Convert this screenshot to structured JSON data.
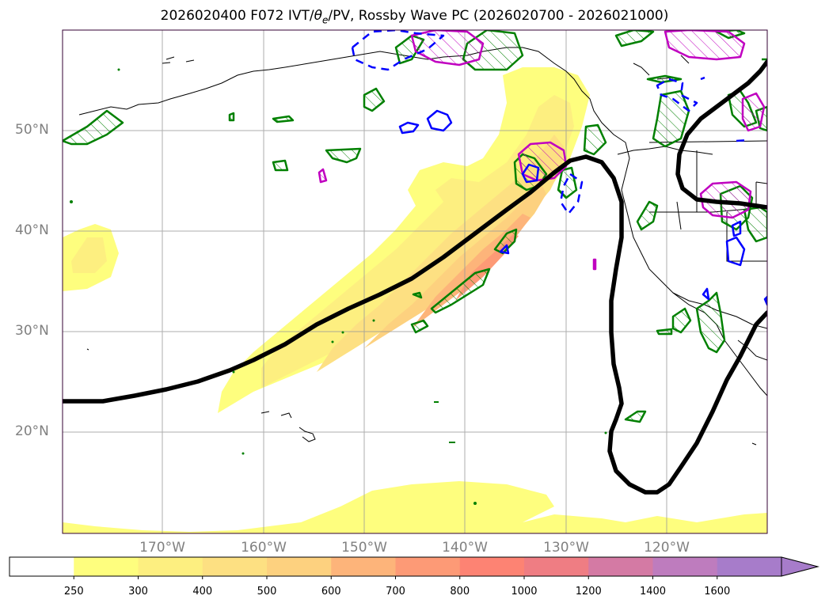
{
  "title_parts": {
    "prefix": "2026020400 F072 IVT/",
    "theta": "θ",
    "theta_sub": "e",
    "suffix": "/PV, Rossby Wave PC (2026020700 - 2026021000)"
  },
  "map": {
    "lat_labels": [
      "50°N",
      "40°N",
      "30°N",
      "20°N"
    ],
    "lon_labels": [
      "170°W",
      "160°W",
      "150°W",
      "140°W",
      "130°W",
      "120°W"
    ]
  },
  "colorbar": {
    "labels": [
      "250",
      "300",
      "400",
      "500",
      "600",
      "700",
      "800",
      "1000",
      "1200",
      "1400",
      "1600"
    ],
    "colors": [
      "#ffffff",
      "#fefe7e",
      "#fdef80",
      "#fde082",
      "#fdd17f",
      "#fdb47a",
      "#fd9a76",
      "#fd8373",
      "#ef7d83",
      "#d47aa4",
      "#be7cbe",
      "#a77cca"
    ]
  }
}
